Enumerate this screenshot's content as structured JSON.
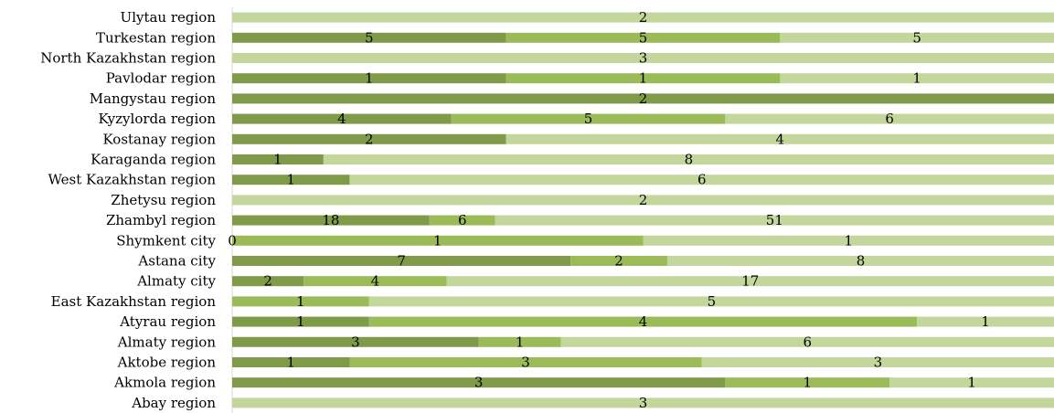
{
  "chart_data": {
    "type": "bar",
    "orientation": "horizontal",
    "stacked": true,
    "normalized": true,
    "grid": false,
    "legend": "none",
    "categories": [
      "Ulytau region",
      "Turkestan region",
      "North Kazakhstan region",
      "Pavlodar region",
      "Mangystau region",
      "Kyzylorda region",
      "Kostanay region",
      "Karaganda region",
      "West Kazakhstan region",
      "Zhetysu region",
      "Zhambyl region",
      "Shymkent city",
      "Astana city",
      "Almaty city",
      "East Kazakhstan region",
      "Atyrau region",
      "Almaty region",
      "Aktobe region",
      "Akmola region",
      "Abay region"
    ],
    "series": [
      {
        "color": "#7f9a48",
        "values": [
          null,
          5,
          null,
          1,
          2,
          4,
          2,
          1,
          1,
          null,
          18,
          0,
          7,
          2,
          null,
          1,
          3,
          1,
          3,
          null
        ]
      },
      {
        "color": "#9bbb59",
        "values": [
          null,
          5,
          null,
          1,
          null,
          5,
          null,
          null,
          null,
          null,
          6,
          1,
          2,
          4,
          1,
          4,
          1,
          3,
          1,
          null
        ]
      },
      {
        "color": "#c3d69b",
        "values": [
          2,
          5,
          3,
          1,
          null,
          6,
          4,
          8,
          6,
          2,
          51,
          1,
          8,
          17,
          5,
          1,
          6,
          3,
          1,
          3
        ]
      }
    ]
  }
}
